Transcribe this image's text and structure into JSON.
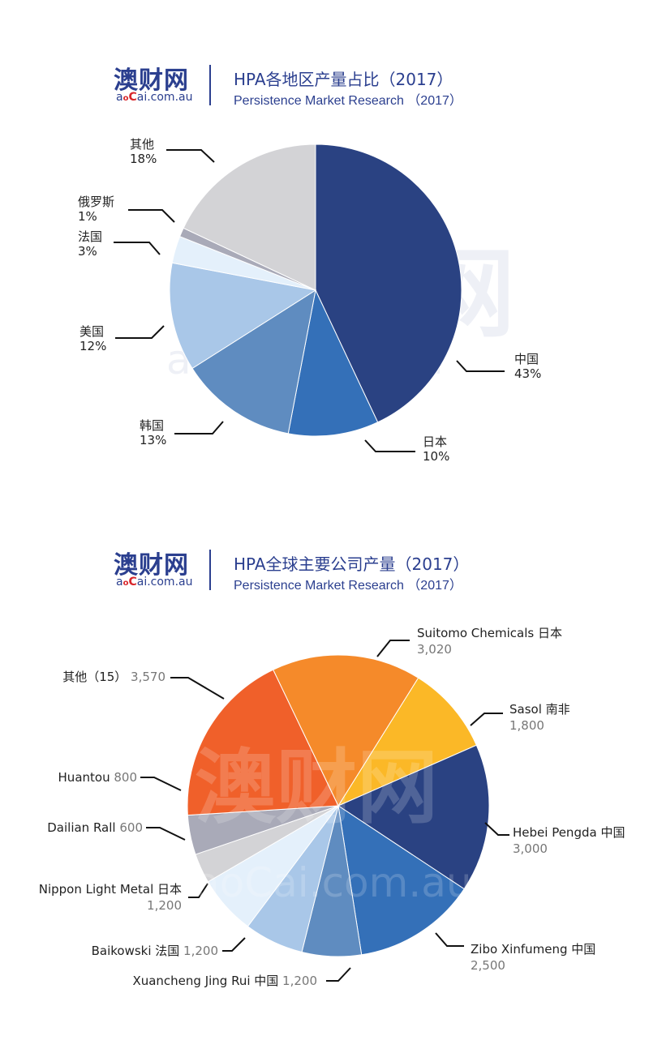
{
  "panels": [
    {
      "logo": {
        "cn": "澳财网",
        "en_a": "a",
        "en_o": "o",
        "en_c": "C",
        "en_rest": "ai.com.au"
      },
      "title": "HPA各地区产量占比（2017）",
      "subtitle": "Persistence Market Research （2017）",
      "watermark_cn": "财网",
      "watermark_en": "aoCai.com.au"
    },
    {
      "logo": {
        "cn": "澳财网",
        "en_a": "a",
        "en_o": "o",
        "en_c": "C",
        "en_rest": "ai.com.au"
      },
      "title": "HPA全球主要公司产量（2017）",
      "subtitle": "Persistence Market Research （2017）",
      "watermark_cn": "澳财网",
      "watermark_en": "aoCai.com.au"
    }
  ],
  "chart_data": [
    {
      "type": "pie",
      "title": "HPA各地区产量占比（2017）",
      "slices": [
        {
          "name": "中国",
          "label": "43%",
          "value": 43,
          "color": "#2a4282"
        },
        {
          "name": "日本",
          "label": "10%",
          "value": 10,
          "color": "#3470b8"
        },
        {
          "name": "韩国",
          "label": "13%",
          "value": 13,
          "color": "#5f8cc0"
        },
        {
          "name": "美国",
          "label": "12%",
          "value": 12,
          "color": "#a9c7e8"
        },
        {
          "name": "法国",
          "label": "3%",
          "value": 3,
          "color": "#e4f0fb"
        },
        {
          "name": "俄罗斯",
          "label": "1%",
          "value": 1,
          "color": "#a9aab8"
        },
        {
          "name": "其他",
          "label": "18%",
          "value": 18,
          "color": "#d3d3d6"
        }
      ]
    },
    {
      "type": "pie",
      "title": "HPA全球主要公司产量（2017）",
      "slices": [
        {
          "name": "Sasol",
          "country": "南非",
          "label": "1,800",
          "value": 1800,
          "color": "#fbb827"
        },
        {
          "name": "Hebei Pengda",
          "country": "中国",
          "label": "3,000",
          "value": 3000,
          "color": "#2a4282"
        },
        {
          "name": "Zibo Xinfumeng",
          "country": "中国",
          "label": "2,500",
          "value": 2500,
          "color": "#3470b8"
        },
        {
          "name": "Xuancheng Jing Rui",
          "country": "中国",
          "label": "1,200",
          "value": 1200,
          "color": "#5f8cc0"
        },
        {
          "name": "Baikowski",
          "country": "法国",
          "label": "1,200",
          "value": 1200,
          "color": "#a9c7e8"
        },
        {
          "name": "Nippon Light Metal",
          "country": "日本",
          "label": "1,200",
          "value": 1200,
          "color": "#e4f0fb"
        },
        {
          "name": "Dailian Rall",
          "country": "",
          "label": "600",
          "value": 600,
          "color": "#d3d3d6"
        },
        {
          "name": "Huantou",
          "country": "",
          "label": "800",
          "value": 800,
          "color": "#a9aab8"
        },
        {
          "name": "其他（15）",
          "country": "",
          "label": "3,570",
          "value": 3570,
          "color": "#f0602a"
        },
        {
          "name": "Suitomo Chemicals",
          "country": "日本",
          "label": "3,020",
          "value": 3020,
          "color": "#f58a2a"
        }
      ]
    }
  ]
}
